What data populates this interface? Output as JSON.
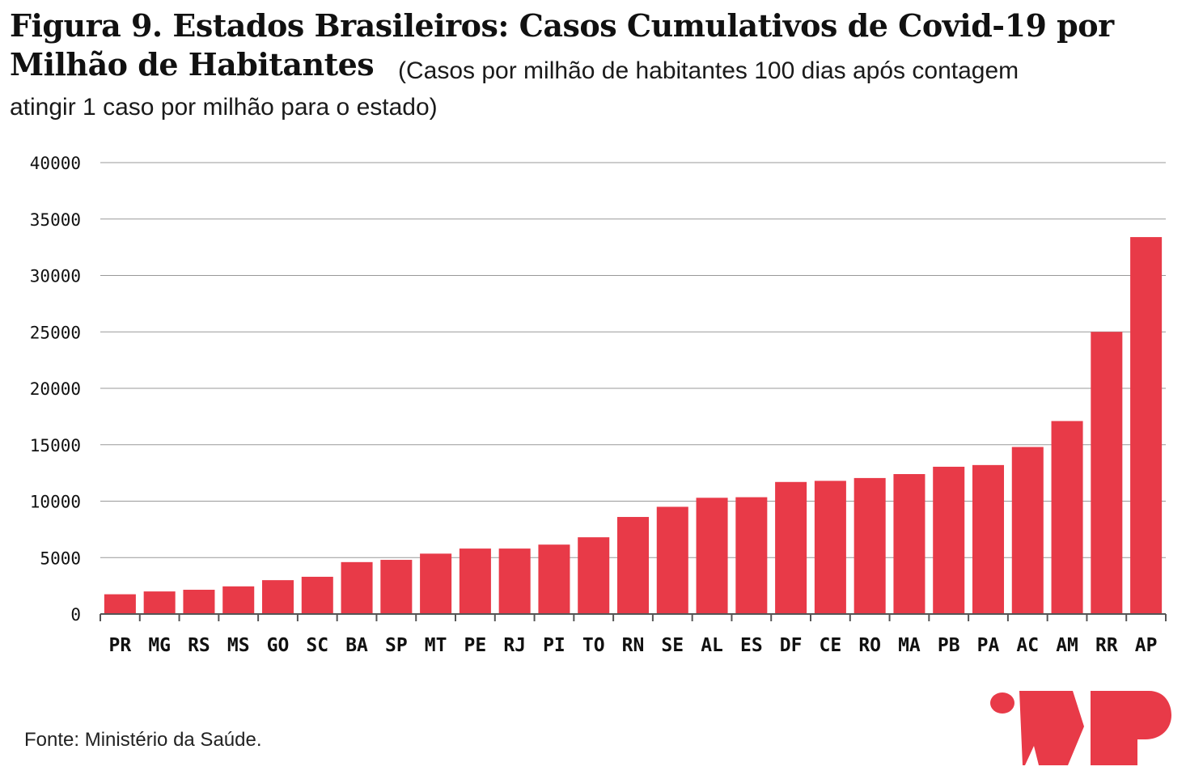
{
  "title": {
    "line1": "Figura 9. Estados Brasileiros: Casos Cumulativos de Covid-19 por",
    "line2": "Milhão de Habitantes",
    "subtitle_a": "(Casos por milhão de habitantes 100 dias após contagem",
    "subtitle_b": "atingir 1 caso por milhão para o estado)"
  },
  "source": "Fonte: Ministério da Saúde.",
  "logo": {
    "icon": "mp-logo-icon"
  },
  "colors": {
    "bar": "#e83a48",
    "grid": "#999999",
    "axis": "#555555",
    "text": "#111111"
  },
  "chart_data": {
    "type": "bar",
    "categories": [
      "PR",
      "MG",
      "RS",
      "MS",
      "GO",
      "SC",
      "BA",
      "SP",
      "MT",
      "PE",
      "RJ",
      "PI",
      "TO",
      "RN",
      "SE",
      "AL",
      "ES",
      "DF",
      "CE",
      "RO",
      "MA",
      "PB",
      "PA",
      "AC",
      "AM",
      "RR",
      "AP"
    ],
    "values": [
      1750,
      2000,
      2150,
      2450,
      3000,
      3300,
      4600,
      4800,
      5350,
      5800,
      5800,
      6150,
      6800,
      8600,
      9500,
      10300,
      10350,
      11700,
      11800,
      12050,
      12400,
      13050,
      13200,
      14800,
      17100,
      25000,
      33400
    ],
    "yticks": [
      0,
      5000,
      10000,
      15000,
      20000,
      25000,
      30000,
      35000,
      40000
    ],
    "ylim": [
      0,
      40000
    ],
    "xlabel": "",
    "ylabel": "",
    "grid": true
  }
}
